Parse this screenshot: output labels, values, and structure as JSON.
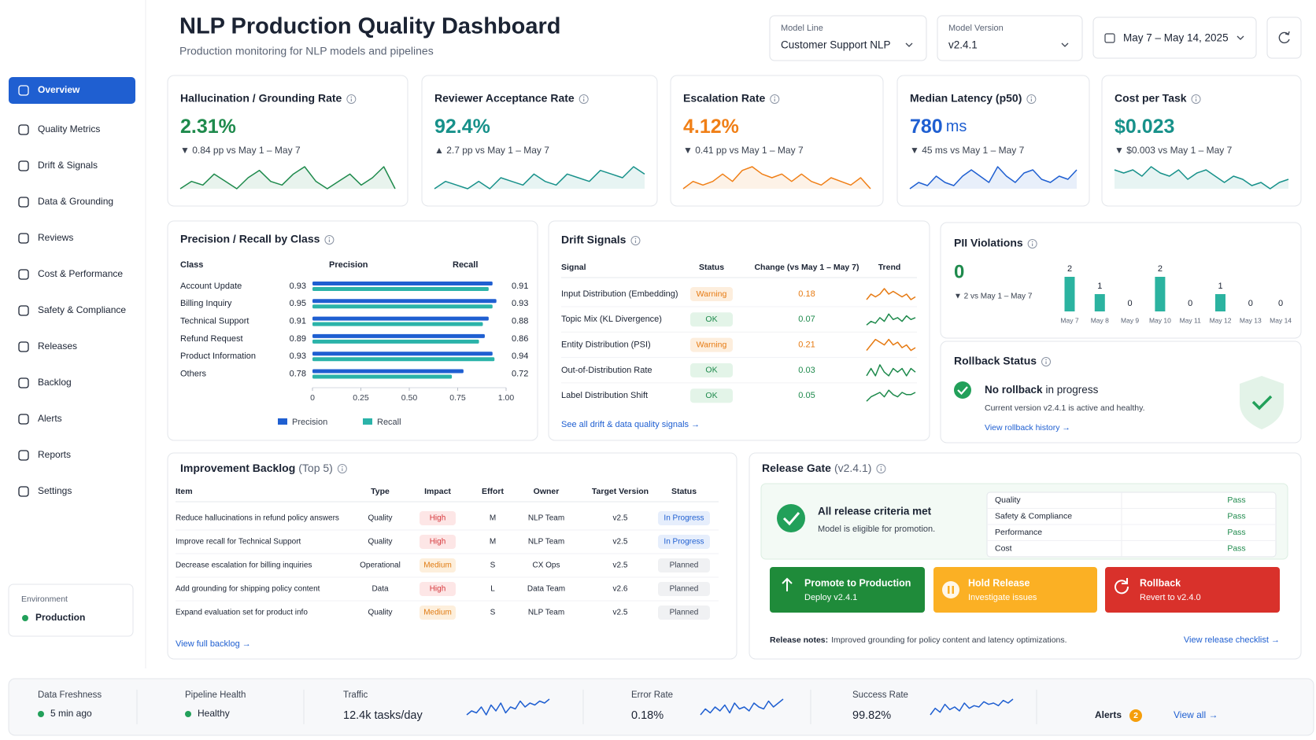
{
  "header": {
    "title": "NLP Production Quality Dashboard",
    "subtitle": "Production monitoring for NLP models and pipelines",
    "filters": [
      {
        "label": "Model Line",
        "value": "Customer Support NLP"
      },
      {
        "label": "Model Version",
        "value": "v2.4.1"
      }
    ],
    "date_range": "May 7 – May 14, 2025"
  },
  "sidebar": {
    "items": [
      "Overview",
      "Quality Metrics",
      "Drift & Signals",
      "Data & Grounding",
      "Reviews",
      "Cost & Performance",
      "Safety & Compliance",
      "Releases",
      "Backlog",
      "Alerts",
      "Reports",
      "Settings"
    ],
    "environment": {
      "label": "Environment",
      "value": "Production"
    }
  },
  "kpis": [
    {
      "title": "Hallucination / Grounding Rate",
      "value": "2.31%",
      "delta": "▼ 0.84 pp vs May 1 – May 7",
      "color": "#1e8a4c",
      "trend": [
        3,
        4,
        3.5,
        5,
        4,
        3,
        4.5,
        5.5,
        4,
        3.5,
        5,
        6,
        4,
        3,
        4,
        5,
        3.5,
        4.5,
        6,
        3
      ]
    },
    {
      "title": "Reviewer Acceptance Rate",
      "value": "92.4%",
      "delta": "▲ 2.7 pp vs May 1 – May 7",
      "color": "#17918a",
      "trend": [
        4,
        5,
        4.5,
        4,
        5,
        4,
        5.5,
        5,
        4.5,
        6,
        5,
        4.5,
        6,
        5.5,
        5,
        6.5,
        6,
        5.5,
        7,
        6
      ]
    },
    {
      "title": "Escalation Rate",
      "value": "4.12%",
      "delta": "▼ 0.41 pp vs May 1 – May 7",
      "color": "#f07f16",
      "trend": [
        4,
        5,
        4.5,
        5,
        6,
        5,
        6.5,
        7,
        6,
        5.5,
        6,
        5,
        6,
        5,
        4.5,
        5.5,
        5,
        4.5,
        5.5,
        4
      ]
    },
    {
      "title": "Median Latency (p50)",
      "value": "780",
      "unit": "ms",
      "delta": "▼ 45 ms vs May 1 – May 7",
      "color": "#1f5fd1",
      "trend": [
        3,
        4,
        3.5,
        5,
        4,
        3.5,
        5,
        6,
        5,
        4,
        6.5,
        5,
        4,
        5.5,
        6,
        4.5,
        4,
        5,
        4.5,
        6
      ]
    },
    {
      "title": "Cost per Task",
      "value": "$0.023",
      "delta": "▼ $0.003 vs May 1 – May 7",
      "color": "#17918a",
      "trend": [
        6,
        5.5,
        6,
        5,
        6.5,
        5.5,
        5,
        6,
        4.5,
        5.5,
        6,
        5,
        4,
        5,
        4.5,
        3.5,
        4,
        3,
        4,
        4.5
      ]
    }
  ],
  "precision_recall": {
    "title": "Precision / Recall by Class",
    "headers": [
      "Class",
      "Precision",
      "Recall"
    ],
    "rows": [
      {
        "class": "Account Update",
        "precision": 0.93,
        "recall": 0.91
      },
      {
        "class": "Billing Inquiry",
        "precision": 0.95,
        "recall": 0.93
      },
      {
        "class": "Technical Support",
        "precision": 0.91,
        "recall": 0.88
      },
      {
        "class": "Refund Request",
        "precision": 0.89,
        "recall": 0.86
      },
      {
        "class": "Product Information",
        "precision": 0.93,
        "recall": 0.94
      },
      {
        "class": "Others",
        "precision": 0.78,
        "recall": 0.72
      }
    ],
    "xlim": [
      0,
      1
    ],
    "xticks": [
      0,
      0.25,
      {
        "value": 0.5,
        "label": "0.50"
      },
      0.75,
      {
        "value": 1,
        "label": "1.00"
      }
    ],
    "legend": [
      {
        "name": "Precision",
        "color": "#1f5fd1"
      },
      {
        "name": "Recall",
        "color": "#2bb3a9"
      }
    ]
  },
  "drift": {
    "title": "Drift Signals",
    "headers": [
      "Signal",
      "Status",
      "Change (vs May 1 – May 7)",
      "Trend"
    ],
    "rows": [
      {
        "signal": "Input Distribution (Embedding)",
        "status": "Warning",
        "change": "0.18",
        "color": "#e67a12",
        "bg": "#fdeedd",
        "trend": [
          4,
          5,
          4.5,
          5,
          6,
          5,
          5.5,
          5,
          4.5,
          5,
          4,
          4.5
        ]
      },
      {
        "signal": "Topic Mix (KL Divergence)",
        "status": "OK",
        "change": "0.07",
        "color": "#1e8a4c",
        "bg": "#e3f4e8",
        "trend": [
          3,
          4,
          3.5,
          5,
          4,
          6,
          4.5,
          5,
          4,
          5.5,
          4.5,
          5
        ]
      },
      {
        "signal": "Entity Distribution (PSI)",
        "status": "Warning",
        "change": "0.21",
        "color": "#e67a12",
        "bg": "#fdeedd",
        "trend": [
          4,
          5,
          6,
          5.5,
          5,
          6,
          5,
          5.5,
          4.5,
          5,
          4,
          4.5
        ]
      },
      {
        "signal": "Out-of-Distribution Rate",
        "status": "OK",
        "change": "0.03",
        "color": "#1e8a4c",
        "bg": "#e3f4e8",
        "trend": [
          4,
          5,
          4,
          5.5,
          4.5,
          4,
          5,
          4.5,
          5,
          4,
          5,
          4.5
        ]
      },
      {
        "signal": "Label Distribution Shift",
        "status": "OK",
        "change": "0.05",
        "color": "#1e8a4c",
        "bg": "#e3f4e8",
        "trend": [
          3,
          4,
          4.5,
          5,
          4,
          5.5,
          4.5,
          4,
          5,
          4.5,
          4.5,
          5
        ]
      }
    ],
    "link": "See all drift & data quality signals →"
  },
  "pii": {
    "title": "PII Violations",
    "value": "0",
    "delta": "▼ 2 vs May 1 – May 7",
    "color": "#2bb3a0",
    "categories": [
      "May 7",
      "May 8",
      "May 9",
      "May 10",
      "May 11",
      "May 12",
      "May 13",
      "May 14"
    ],
    "values": [
      2,
      1,
      0,
      2,
      0,
      1,
      0,
      0
    ]
  },
  "rollback": {
    "title": "Rollback Status",
    "status": "No rollback",
    "status_rest": "in progress",
    "detail": "Current version v2.4.1 is active and healthy.",
    "link": "View rollback history →"
  },
  "backlog": {
    "title": "Improvement Backlog",
    "suffix": "(Top 5)",
    "headers": [
      "Item",
      "Type",
      "Impact",
      "Effort",
      "Owner",
      "Target Version",
      "Status"
    ],
    "rows": [
      [
        "Reduce hallucinations in refund policy answers",
        "Quality",
        "High",
        "M",
        "NLP Team",
        "v2.5",
        "In Progress"
      ],
      [
        "Improve recall for Technical Support",
        "Quality",
        "High",
        "M",
        "NLP Team",
        "v2.5",
        "In Progress"
      ],
      [
        "Decrease escalation for billing inquiries",
        "Operational",
        "Medium",
        "S",
        "CX Ops",
        "v2.5",
        "Planned"
      ],
      [
        "Add grounding for shipping policy content",
        "Data",
        "High",
        "L",
        "Data Team",
        "v2.6",
        "Planned"
      ],
      [
        "Expand evaluation set for product info",
        "Quality",
        "Medium",
        "S",
        "NLP Team",
        "v2.5",
        "Planned"
      ]
    ],
    "pill_colors": {
      "High": {
        "bg": "#fde6e6",
        "fg": "#d6373b"
      },
      "Medium": {
        "bg": "#fdefdc",
        "fg": "#e07b12"
      },
      "In Progress": {
        "bg": "#e6eefc",
        "fg": "#1f5fd1"
      },
      "Planned": {
        "bg": "#f0f1f3",
        "fg": "#3d4452"
      }
    },
    "link": "View full backlog →"
  },
  "release_gate": {
    "title": "Release Gate",
    "suffix": "(v2.4.1)",
    "headline": "All release criteria met",
    "subline": "Model is eligible for promotion.",
    "criteria": [
      {
        "name": "Quality",
        "result": "Pass"
      },
      {
        "name": "Safety & Compliance",
        "result": "Pass"
      },
      {
        "name": "Performance",
        "result": "Pass"
      },
      {
        "name": "Cost",
        "result": "Pass"
      }
    ],
    "buttons": [
      {
        "title": "Promote to Production",
        "sub": "Deploy v2.4.1",
        "color": "#1f8b3a"
      },
      {
        "title": "Hold Release",
        "sub": "Investigate issues",
        "color": "#fbb024"
      },
      {
        "title": "Rollback",
        "sub": "Revert to v2.4.0",
        "color": "#d9312b"
      }
    ],
    "notes_label": "Release notes:",
    "notes": "Improved grounding for policy content and latency optimizations.",
    "link": "View release checklist →"
  },
  "footer": {
    "items": [
      {
        "label": "Data Freshness",
        "value": "5 min ago",
        "dot": "#22a05a"
      },
      {
        "label": "Pipeline Health",
        "value": "Healthy",
        "dot": "#22a05a"
      },
      {
        "label": "Traffic",
        "value": "12.4k tasks/day",
        "trend": [
          3,
          4,
          3.5,
          5,
          3,
          5.5,
          4,
          6,
          3.5,
          5,
          4.5,
          6.5,
          5,
          6,
          5.5,
          6.5,
          6,
          7
        ]
      },
      {
        "label": "Error Rate",
        "value": "0.18%",
        "trend": [
          3,
          4.5,
          3.5,
          5,
          4,
          5.5,
          3.5,
          6,
          4.5,
          5,
          4,
          6,
          5,
          4.5,
          6.5,
          5,
          6,
          7
        ]
      },
      {
        "label": "Success Rate",
        "value": "99.82%",
        "trend": [
          4,
          4.5,
          4.2,
          4.8,
          4.4,
          4.6,
          4.3,
          4.9,
          4.5,
          4.7,
          4.6,
          5,
          4.8,
          4.9,
          4.7,
          5.1,
          4.9,
          5.2
        ]
      }
    ],
    "alerts": {
      "label": "Alerts",
      "count": "2",
      "link": "View all →"
    }
  }
}
